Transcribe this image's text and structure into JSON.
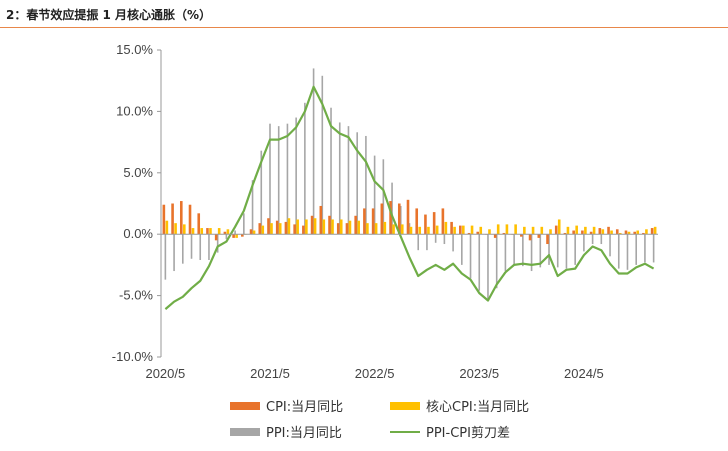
{
  "page": {
    "title": "2：春节效应提振 1 月核心通胀（%）"
  },
  "colors": {
    "cpi": "#e8732b",
    "core": "#ffc000",
    "ppi": "#a6a6a6",
    "gap": "#70ad47",
    "rule": "#e8874a",
    "axis": "#999999"
  },
  "chart_data": {
    "type": "bar",
    "title": "春节效应提振 1 月核心通胀（%）",
    "ylim": [
      -10,
      15
    ],
    "ytick_labels": [
      "15.0%",
      "10.0%",
      "5.0%",
      "0.0%",
      "-5.0%",
      "-10.0%"
    ],
    "xtick_labels": [
      "2020/5",
      "2021/5",
      "2022/5",
      "2023/5",
      "2024/5"
    ],
    "x": [
      "2020/5",
      "2020/6",
      "2020/7",
      "2020/8",
      "2020/9",
      "2020/10",
      "2020/11",
      "2020/12",
      "2021/1",
      "2021/2",
      "2021/3",
      "2021/4",
      "2021/5",
      "2021/6",
      "2021/7",
      "2021/8",
      "2021/9",
      "2021/10",
      "2021/11",
      "2021/12",
      "2022/1",
      "2022/2",
      "2022/3",
      "2022/4",
      "2022/5",
      "2022/6",
      "2022/7",
      "2022/8",
      "2022/9",
      "2022/10",
      "2022/11",
      "2022/12",
      "2023/1",
      "2023/2",
      "2023/3",
      "2023/4",
      "2023/5",
      "2023/6",
      "2023/7",
      "2023/8",
      "2023/9",
      "2023/10",
      "2023/11",
      "2023/12",
      "2024/1",
      "2024/2",
      "2024/3",
      "2024/4",
      "2024/5",
      "2024/6",
      "2024/7",
      "2024/8",
      "2024/9",
      "2024/10",
      "2024/11",
      "2024/12",
      "2025/1"
    ],
    "series": [
      {
        "name": "CPI:当月同比",
        "kind": "bar",
        "values": [
          2.4,
          2.5,
          2.7,
          2.4,
          1.7,
          0.5,
          -0.5,
          0.2,
          -0.3,
          -0.2,
          0.4,
          0.9,
          1.3,
          1.1,
          1.0,
          0.8,
          0.7,
          1.5,
          2.3,
          1.5,
          0.9,
          0.9,
          1.5,
          2.1,
          2.1,
          2.5,
          2.7,
          2.5,
          2.8,
          2.1,
          1.6,
          1.8,
          2.1,
          1.0,
          0.7,
          0.1,
          0.2,
          0.0,
          -0.3,
          0.1,
          0.0,
          -0.2,
          -0.5,
          -0.3,
          -0.8,
          0.7,
          0.1,
          0.3,
          0.3,
          0.2,
          0.5,
          0.6,
          0.4,
          0.3,
          0.2,
          0.1,
          0.5
        ]
      },
      {
        "name": "核心CPI:当月同比",
        "kind": "bar",
        "values": [
          1.1,
          0.9,
          0.8,
          0.5,
          0.5,
          0.5,
          0.5,
          0.4,
          -0.3,
          0.0,
          0.3,
          0.7,
          0.9,
          0.9,
          1.3,
          1.2,
          1.2,
          1.3,
          1.2,
          1.2,
          1.2,
          1.1,
          1.1,
          0.9,
          0.9,
          1.0,
          0.8,
          0.8,
          0.6,
          0.6,
          0.6,
          0.7,
          1.0,
          0.6,
          0.7,
          0.7,
          0.6,
          0.4,
          0.8,
          0.8,
          0.8,
          0.6,
          0.6,
          0.6,
          0.4,
          1.2,
          0.6,
          0.7,
          0.6,
          0.6,
          0.4,
          0.3,
          0.1,
          0.2,
          0.3,
          0.4,
          0.6
        ]
      },
      {
        "name": "PPI:当月同比",
        "kind": "bar",
        "values": [
          -3.7,
          -3.0,
          -2.4,
          -2.0,
          -2.1,
          -2.1,
          -1.5,
          -0.4,
          0.3,
          1.7,
          4.4,
          6.8,
          9.0,
          8.8,
          9.0,
          9.5,
          10.7,
          13.5,
          12.9,
          10.3,
          9.1,
          8.8,
          8.3,
          8.0,
          6.4,
          6.1,
          4.2,
          2.3,
          0.9,
          -1.3,
          -1.3,
          -0.7,
          -0.8,
          -1.4,
          -2.5,
          -3.6,
          -4.6,
          -5.4,
          -4.4,
          -3.0,
          -2.5,
          -2.6,
          -3.0,
          -2.7,
          -2.5,
          -2.7,
          -2.8,
          -2.5,
          -1.4,
          -0.8,
          -0.8,
          -1.8,
          -2.8,
          -2.9,
          -2.5,
          -2.3,
          -2.3
        ]
      },
      {
        "name": "PPI-CPI剪刀差",
        "kind": "line",
        "values": [
          -6.1,
          -5.5,
          -5.1,
          -4.4,
          -3.8,
          -2.6,
          -1.0,
          -0.6,
          0.6,
          1.9,
          4.0,
          5.9,
          7.7,
          7.7,
          8.0,
          8.7,
          10.0,
          12.0,
          10.6,
          8.8,
          8.2,
          7.9,
          6.8,
          5.9,
          4.3,
          3.6,
          1.5,
          -0.2,
          -1.9,
          -3.4,
          -2.9,
          -2.5,
          -2.9,
          -2.4,
          -3.2,
          -3.7,
          -4.8,
          -5.4,
          -4.1,
          -3.1,
          -2.5,
          -2.4,
          -2.5,
          -2.4,
          -1.7,
          -3.4,
          -2.9,
          -2.8,
          -1.7,
          -1.0,
          -1.3,
          -2.4,
          -3.2,
          -3.2,
          -2.7,
          -2.4,
          -2.8
        ]
      }
    ]
  }
}
